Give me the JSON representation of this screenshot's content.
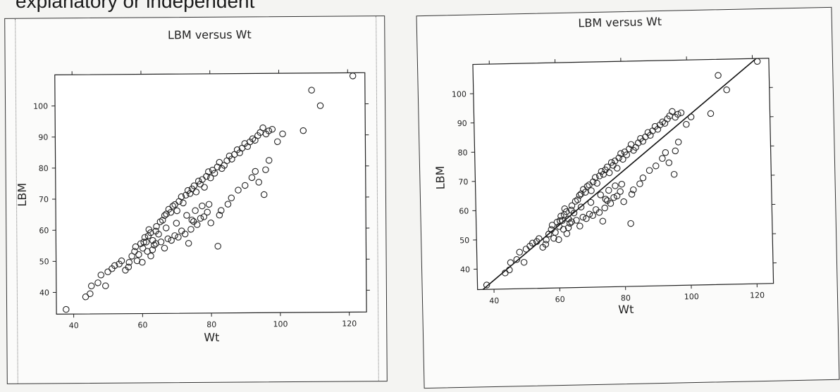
{
  "page": {
    "caption": "explanatory or independent"
  },
  "chart_data": [
    {
      "type": "scatter",
      "title": "LBM versus Wt",
      "xlabel": "Wt",
      "ylabel": "LBM",
      "xlim": [
        35,
        125
      ],
      "ylim": [
        33,
        110
      ],
      "xticks": [
        40,
        60,
        80,
        100,
        120
      ],
      "yticks": [
        40,
        50,
        60,
        70,
        80,
        90,
        100
      ],
      "marker": "open-circle",
      "series": [
        {
          "x": [
            37.8,
            43.5,
            44.8,
            45.2,
            47.1,
            48.0,
            49.3,
            50.0,
            51.2,
            52.0,
            53.3,
            54.0,
            55.1,
            56.2,
            57.0,
            57.8,
            58.1,
            59.0,
            59.6,
            60.2,
            60.8,
            61.2,
            61.8,
            62.0,
            62.5,
            63.1,
            63.5,
            64.2,
            64.8,
            65.3,
            66.0,
            66.6,
            67.1,
            67.8,
            68.4,
            69.0,
            69.6,
            70.2,
            70.8,
            71.5,
            72.0,
            72.8,
            73.4,
            74.0,
            74.6,
            75.2,
            75.8,
            76.5,
            77.0,
            77.6,
            78.2,
            78.8,
            79.4,
            80.0,
            80.6,
            81.2,
            82.0,
            82.6,
            83.3,
            84.0,
            84.8,
            85.5,
            86.2,
            87.0,
            87.8,
            88.5,
            89.2,
            90.0,
            90.8,
            91.5,
            92.3,
            93.0,
            93.8,
            94.5,
            95.3,
            96.2,
            97.0,
            98.0,
            99.5,
            101.0,
            107.0,
            109.5,
            112.0,
            121.5,
            56.0,
            58.5,
            60.0,
            61.5,
            62.5,
            63.0,
            64.0,
            65.5,
            66.5,
            67.5,
            68.5,
            69.5,
            70.5,
            71.5,
            72.5,
            73.5,
            74.2,
            75.0,
            76.0,
            77.0,
            78.0,
            79.0,
            80.0,
            82.0,
            83.0,
            85.0,
            86.0,
            88.0,
            90.0,
            92.0,
            93.0,
            94.0,
            95.5,
            96.0,
            97.0,
            60.5,
            64.0,
            67.0,
            70.0,
            73.0,
            74.5,
            75.5,
            77.5,
            79.5,
            82.5
          ],
          "y": [
            34.5,
            38.5,
            39.5,
            42.0,
            43.0,
            45.5,
            42.0,
            46.5,
            47.5,
            48.5,
            49.0,
            50.0,
            47.0,
            49.5,
            51.5,
            53.0,
            54.5,
            52.0,
            55.5,
            54.0,
            57.5,
            56.0,
            58.0,
            60.0,
            59.0,
            56.5,
            55.0,
            61.0,
            58.5,
            62.5,
            63.0,
            64.5,
            65.0,
            66.5,
            65.5,
            67.5,
            68.0,
            66.0,
            69.0,
            70.5,
            68.5,
            71.0,
            72.5,
            71.5,
            73.0,
            74.0,
            72.0,
            75.5,
            74.5,
            76.0,
            73.5,
            77.0,
            78.5,
            76.5,
            79.0,
            78.0,
            80.0,
            81.5,
            79.5,
            80.5,
            82.0,
            83.5,
            82.5,
            84.0,
            85.5,
            84.5,
            86.0,
            87.5,
            86.5,
            88.0,
            89.0,
            88.5,
            90.0,
            91.0,
            92.5,
            90.5,
            91.5,
            92.0,
            88.0,
            90.5,
            91.5,
            104.5,
            99.5,
            109.0,
            48.0,
            50.0,
            49.5,
            53.0,
            51.5,
            53.5,
            55.5,
            56.0,
            54.0,
            57.0,
            56.5,
            58.0,
            57.5,
            59.5,
            58.5,
            55.5,
            60.0,
            62.5,
            61.5,
            63.5,
            64.0,
            65.5,
            62.0,
            54.5,
            66.0,
            68.0,
            70.0,
            72.5,
            74.0,
            76.5,
            78.5,
            75.0,
            71.0,
            79.0,
            82.0,
            56.0,
            59.5,
            60.5,
            62.0,
            64.5,
            63.0,
            66.0,
            67.5,
            68.0,
            64.5
          ]
        }
      ]
    },
    {
      "type": "scatter",
      "title": "LBM versus Wt",
      "xlabel": "Wt",
      "ylabel": "LBM",
      "xlim": [
        35,
        125
      ],
      "ylim": [
        33,
        110
      ],
      "xticks": [
        40,
        60,
        80,
        100,
        120
      ],
      "yticks": [
        40,
        50,
        60,
        70,
        80,
        90,
        100
      ],
      "marker": "open-circle",
      "has_reference_line": true,
      "reference_line": {
        "x": [
          35,
          125
        ],
        "y": [
          31.5,
          113.5
        ]
      },
      "series": [
        {
          "x": [
            37.8,
            43.5,
            44.8,
            45.2,
            47.1,
            48.0,
            49.3,
            50.0,
            51.2,
            52.0,
            53.3,
            54.0,
            55.1,
            56.2,
            57.0,
            57.8,
            58.1,
            59.0,
            59.6,
            60.2,
            60.8,
            61.2,
            61.8,
            62.0,
            62.5,
            63.1,
            63.5,
            64.2,
            64.8,
            65.3,
            66.0,
            66.6,
            67.1,
            67.8,
            68.4,
            69.0,
            69.6,
            70.2,
            70.8,
            71.5,
            72.0,
            72.8,
            73.4,
            74.0,
            74.6,
            75.2,
            75.8,
            76.5,
            77.0,
            77.6,
            78.2,
            78.8,
            79.4,
            80.0,
            80.6,
            81.2,
            82.0,
            82.6,
            83.3,
            84.0,
            84.8,
            85.5,
            86.2,
            87.0,
            87.8,
            88.5,
            89.2,
            90.0,
            90.8,
            91.5,
            92.3,
            93.0,
            93.8,
            94.5,
            95.3,
            96.2,
            97.0,
            98.0,
            99.5,
            101.0,
            107.0,
            109.5,
            112.0,
            121.5,
            56.0,
            58.5,
            60.0,
            61.5,
            62.5,
            63.0,
            64.0,
            65.5,
            66.5,
            67.5,
            68.5,
            69.5,
            70.5,
            71.5,
            72.5,
            73.5,
            74.2,
            75.0,
            76.0,
            77.0,
            78.0,
            79.0,
            80.0,
            82.0,
            83.0,
            85.0,
            86.0,
            88.0,
            90.0,
            92.0,
            93.0,
            94.0,
            95.5,
            96.0,
            97.0,
            60.5,
            64.0,
            67.0,
            70.0,
            73.0,
            74.5,
            75.5,
            77.5,
            79.5,
            82.5
          ],
          "y": [
            34.5,
            38.5,
            39.5,
            42.0,
            43.0,
            45.5,
            42.0,
            46.5,
            47.5,
            48.5,
            49.0,
            50.0,
            47.0,
            49.5,
            51.5,
            53.0,
            54.5,
            52.0,
            55.5,
            54.0,
            57.5,
            56.0,
            58.0,
            60.0,
            59.0,
            56.5,
            55.0,
            61.0,
            58.5,
            62.5,
            63.0,
            64.5,
            65.0,
            66.5,
            65.5,
            67.5,
            68.0,
            66.0,
            69.0,
            70.5,
            68.5,
            71.0,
            72.5,
            71.5,
            73.0,
            74.0,
            72.0,
            75.5,
            74.5,
            76.0,
            73.5,
            77.0,
            78.5,
            76.5,
            79.0,
            78.0,
            80.0,
            81.5,
            79.5,
            80.5,
            82.0,
            83.5,
            82.5,
            84.0,
            85.5,
            84.5,
            86.0,
            87.5,
            86.5,
            88.0,
            89.0,
            88.5,
            90.0,
            91.0,
            92.5,
            90.5,
            91.5,
            92.0,
            88.0,
            90.5,
            91.5,
            104.5,
            99.5,
            109.0,
            48.0,
            50.0,
            49.5,
            53.0,
            51.5,
            53.5,
            55.5,
            56.0,
            54.0,
            57.0,
            56.5,
            58.0,
            57.5,
            59.5,
            58.5,
            55.5,
            60.0,
            62.5,
            61.5,
            63.5,
            64.0,
            65.5,
            62.0,
            54.5,
            66.0,
            68.0,
            70.0,
            72.5,
            74.0,
            76.5,
            78.5,
            75.0,
            71.0,
            79.0,
            82.0,
            56.0,
            59.5,
            60.5,
            62.0,
            64.5,
            63.0,
            66.0,
            67.5,
            68.0,
            64.5
          ]
        }
      ]
    }
  ]
}
